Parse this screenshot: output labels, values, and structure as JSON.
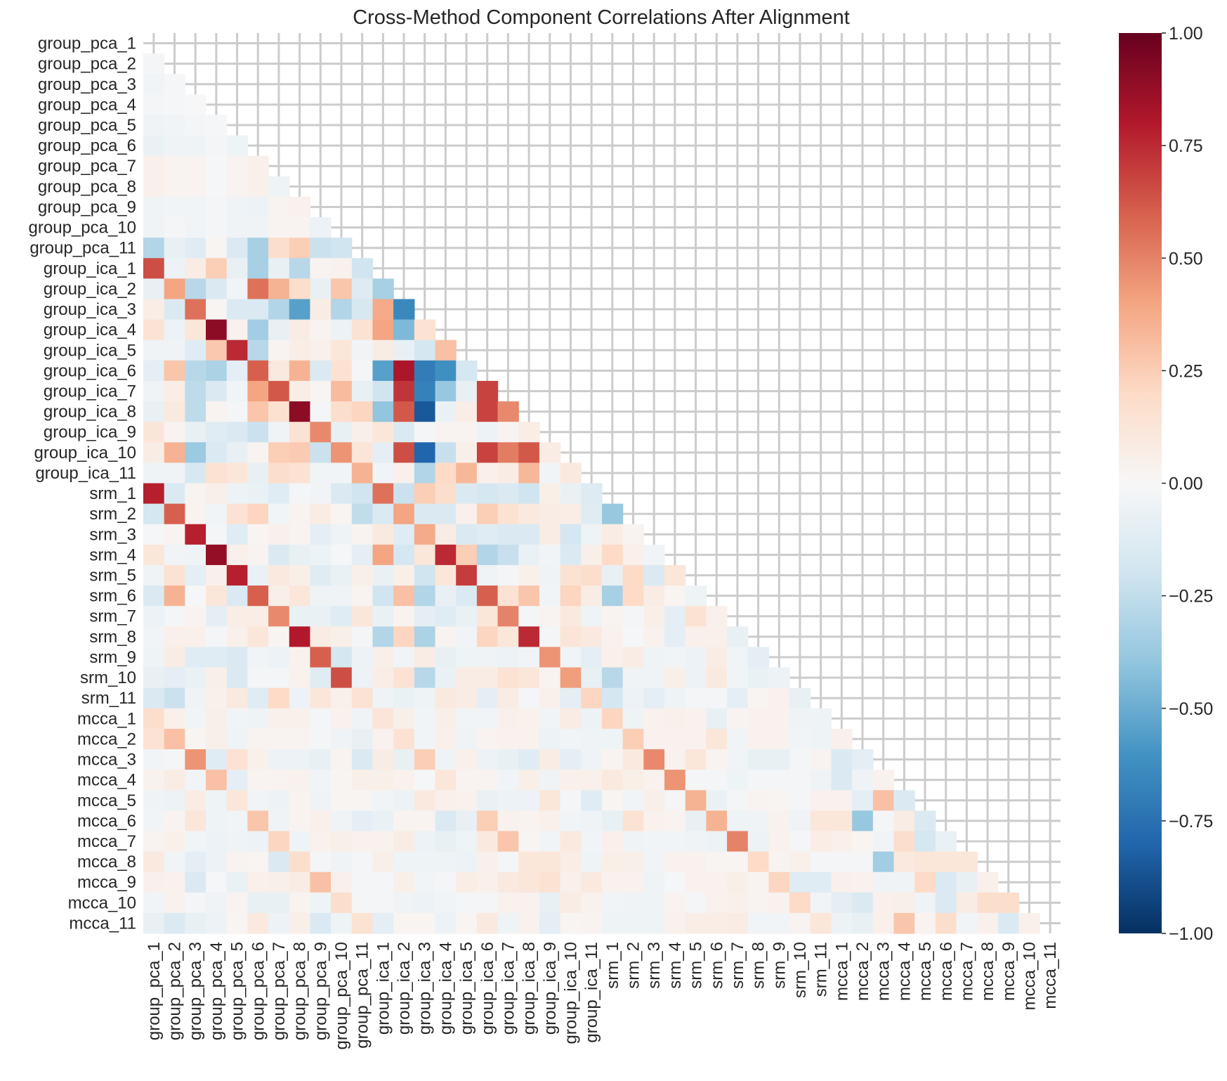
{
  "chart_data": {
    "type": "heatmap",
    "title": "Cross-Method Component Correlations After Alignment",
    "xlabel": "",
    "ylabel": "",
    "mask": "upper-triangle-including-diagonal",
    "colormap": "RdBu_r",
    "vmin": -1,
    "vmax": 1,
    "grid": true,
    "colorbar_ticks": [
      "1.00",
      "0.75",
      "0.50",
      "0.25",
      "0.00",
      "−0.25",
      "−0.50",
      "−0.75",
      "−1.00"
    ],
    "colorbar_tick_values": [
      1,
      0.75,
      0.5,
      0.25,
      0,
      -0.25,
      -0.5,
      -0.75,
      -1
    ],
    "labels": [
      "group_pca_1",
      "group_pca_2",
      "group_pca_3",
      "group_pca_4",
      "group_pca_5",
      "group_pca_6",
      "group_pca_7",
      "group_pca_8",
      "group_pca_9",
      "group_pca_10",
      "group_pca_11",
      "group_ica_1",
      "group_ica_2",
      "group_ica_3",
      "group_ica_4",
      "group_ica_5",
      "group_ica_6",
      "group_ica_7",
      "group_ica_8",
      "group_ica_9",
      "group_ica_10",
      "group_ica_11",
      "srm_1",
      "srm_2",
      "srm_3",
      "srm_4",
      "srm_5",
      "srm_6",
      "srm_7",
      "srm_8",
      "srm_9",
      "srm_10",
      "srm_11",
      "mcca_1",
      "mcca_2",
      "mcca_3",
      "mcca_4",
      "mcca_5",
      "mcca_6",
      "mcca_7",
      "mcca_8",
      "mcca_9",
      "mcca_10",
      "mcca_11"
    ],
    "lower_triangle": [
      [],
      [
        -0.02
      ],
      [
        -0.03,
        -0.01
      ],
      [
        -0.02,
        -0.01,
        0.0
      ],
      [
        -0.04,
        -0.03,
        -0.02,
        -0.01
      ],
      [
        -0.07,
        -0.04,
        -0.05,
        -0.02,
        -0.05
      ],
      [
        0.05,
        0.03,
        0.03,
        -0.01,
        0.03,
        0.05
      ],
      [
        0.05,
        0.03,
        0.03,
        -0.01,
        0.03,
        0.05,
        -0.05
      ],
      [
        -0.04,
        -0.03,
        -0.03,
        -0.02,
        -0.04,
        -0.06,
        0.03,
        0.04
      ],
      [
        -0.04,
        -0.02,
        -0.03,
        -0.02,
        -0.04,
        -0.04,
        0.03,
        0.03,
        -0.06
      ],
      [
        -0.3,
        -0.08,
        -0.12,
        0.02,
        -0.15,
        -0.33,
        0.18,
        0.25,
        -0.22,
        -0.2
      ],
      [
        0.65,
        -0.06,
        0.08,
        0.25,
        -0.08,
        -0.33,
        -0.08,
        -0.28,
        0.03,
        0.04,
        -0.2
      ],
      [
        -0.08,
        0.4,
        -0.28,
        -0.15,
        -0.03,
        0.55,
        0.35,
        0.18,
        -0.08,
        0.28,
        -0.13,
        -0.33
      ],
      [
        0.07,
        -0.15,
        0.55,
        0.02,
        -0.15,
        -0.15,
        -0.3,
        -0.55,
        0.08,
        -0.3,
        -0.17,
        0.38,
        -0.65
      ],
      [
        0.15,
        -0.06,
        0.12,
        0.9,
        0.04,
        -0.35,
        -0.08,
        0.08,
        0.03,
        -0.06,
        0.15,
        0.4,
        -0.45,
        0.15
      ],
      [
        -0.04,
        -0.04,
        -0.12,
        0.27,
        0.75,
        -0.28,
        0.03,
        0.07,
        0.05,
        0.12,
        -0.03,
        0.08,
        -0.08,
        -0.18,
        0.3
      ],
      [
        -0.1,
        0.28,
        -0.28,
        -0.32,
        -0.1,
        0.6,
        0.1,
        0.35,
        -0.15,
        0.15,
        -0.02,
        -0.55,
        0.82,
        -0.7,
        -0.62,
        -0.18
      ],
      [
        -0.04,
        0.07,
        -0.26,
        -0.15,
        -0.03,
        0.4,
        0.62,
        0.07,
        0.02,
        0.32,
        -0.08,
        -0.2,
        0.72,
        -0.68,
        -0.38,
        -0.08,
        0.68
      ],
      [
        -0.08,
        0.1,
        -0.26,
        0.03,
        -0.02,
        0.28,
        0.16,
        0.9,
        -0.02,
        0.18,
        0.22,
        -0.4,
        0.62,
        -0.85,
        -0.07,
        0.07,
        0.68,
        0.48
      ],
      [
        0.13,
        0.03,
        -0.08,
        -0.12,
        -0.15,
        -0.22,
        -0.04,
        0.15,
        0.48,
        -0.08,
        0.06,
        0.12,
        -0.15,
        -0.02,
        0.03,
        0.03,
        -0.06,
        0.03,
        0.07
      ],
      [
        0.08,
        0.35,
        -0.37,
        -0.15,
        -0.08,
        0.03,
        0.25,
        0.26,
        -0.22,
        0.45,
        0.13,
        -0.1,
        0.65,
        -0.8,
        -0.23,
        0.06,
        0.68,
        0.52,
        0.62,
        0.08
      ],
      [
        -0.05,
        -0.04,
        -0.17,
        0.15,
        0.12,
        -0.08,
        0.18,
        0.15,
        -0.03,
        -0.03,
        0.35,
        -0.03,
        0.05,
        -0.3,
        0.2,
        0.33,
        0.05,
        0.08,
        0.33,
        -0.03,
        0.1
      ],
      [
        0.78,
        -0.15,
        0.03,
        0.06,
        -0.06,
        -0.07,
        -0.12,
        -0.02,
        -0.03,
        -0.15,
        -0.2,
        0.55,
        -0.22,
        0.25,
        0.18,
        -0.15,
        -0.18,
        -0.15,
        -0.2,
        0.06,
        -0.07,
        -0.13
      ],
      [
        -0.18,
        0.6,
        0.03,
        -0.03,
        0.15,
        0.22,
        -0.03,
        0.03,
        0.08,
        0.02,
        -0.25,
        -0.15,
        0.4,
        -0.15,
        -0.15,
        0.05,
        0.25,
        0.15,
        0.1,
        0.08,
        0.07,
        -0.12,
        -0.38
      ],
      [
        -0.01,
        0.03,
        0.78,
        -0.02,
        -0.12,
        0.02,
        0.05,
        0.03,
        -0.1,
        -0.05,
        0.03,
        0.1,
        -0.12,
        0.38,
        0.08,
        -0.15,
        -0.12,
        -0.15,
        -0.15,
        0.08,
        -0.18,
        -0.05,
        0.08,
        0.03
      ],
      [
        0.12,
        -0.03,
        -0.05,
        0.88,
        0.05,
        0.03,
        -0.15,
        -0.08,
        -0.06,
        -0.01,
        -0.1,
        0.4,
        -0.18,
        0.12,
        0.75,
        0.25,
        -0.3,
        -0.23,
        -0.07,
        -0.03,
        -0.15,
        0.06,
        0.2,
        0.05,
        -0.03
      ],
      [
        -0.04,
        0.15,
        -0.1,
        0.05,
        0.78,
        -0.07,
        0.1,
        0.06,
        -0.12,
        -0.07,
        0.06,
        -0.07,
        0.06,
        -0.2,
        0.12,
        0.7,
        -0.04,
        -0.02,
        0.05,
        -0.04,
        0.15,
        0.18,
        -0.08,
        0.2,
        -0.15,
        0.12
      ],
      [
        -0.15,
        0.35,
        -0.01,
        0.12,
        -0.15,
        0.6,
        0.06,
        0.12,
        -0.04,
        -0.04,
        0.03,
        -0.2,
        0.3,
        -0.3,
        -0.08,
        -0.15,
        0.6,
        0.15,
        0.28,
        -0.03,
        0.22,
        0.08,
        -0.33,
        0.2,
        0.08,
        0.02,
        -0.05
      ],
      [
        -0.06,
        -0.02,
        0.03,
        -0.1,
        0.07,
        0.07,
        0.48,
        -0.07,
        -0.07,
        -0.12,
        0.12,
        -0.07,
        0.03,
        -0.1,
        -0.12,
        -0.07,
        0.12,
        0.5,
        -0.02,
        0.03,
        0.1,
        -0.05,
        0.03,
        -0.02,
        0.06,
        -0.1,
        0.15,
        0.05
      ],
      [
        -0.03,
        0.05,
        0.05,
        -0.02,
        0.05,
        0.12,
        0.02,
        0.8,
        0.08,
        0.06,
        -0.02,
        -0.3,
        0.22,
        -0.32,
        0.03,
        -0.03,
        0.22,
        0.12,
        0.75,
        -0.02,
        0.13,
        0.1,
        0.04,
        -0.01,
        0.04,
        -0.1,
        0.05,
        0.05,
        -0.08
      ],
      [
        -0.05,
        0.08,
        -0.12,
        -0.12,
        -0.15,
        -0.03,
        -0.06,
        0.04,
        0.6,
        -0.18,
        -0.06,
        0.06,
        -0.03,
        0.08,
        -0.08,
        -0.05,
        -0.04,
        -0.06,
        -0.03,
        0.45,
        -0.03,
        -0.1,
        0.05,
        0.08,
        -0.05,
        -0.03,
        -0.06,
        0.08,
        -0.03,
        -0.1
      ],
      [
        -0.08,
        -0.1,
        -0.07,
        0.06,
        -0.15,
        -0.02,
        -0.02,
        0.04,
        -0.12,
        0.65,
        -0.06,
        0.07,
        0.15,
        -0.28,
        -0.07,
        0.08,
        0.08,
        0.15,
        0.12,
        0.03,
        0.42,
        -0.08,
        -0.28,
        -0.04,
        -0.04,
        0.06,
        -0.06,
        0.1,
        -0.03,
        -0.07,
        -0.06
      ],
      [
        -0.15,
        -0.22,
        -0.04,
        0.05,
        0.1,
        -0.12,
        0.2,
        -0.06,
        0.12,
        0.05,
        0.15,
        -0.04,
        -0.07,
        -0.05,
        0.1,
        0.08,
        -0.1,
        0.08,
        -0.02,
        0.05,
        -0.1,
        0.22,
        -0.18,
        -0.06,
        -0.1,
        -0.05,
        -0.02,
        -0.02,
        -0.1,
        0.02,
        0.04,
        -0.08
      ],
      [
        0.18,
        0.05,
        -0.03,
        0.06,
        -0.03,
        -0.05,
        0.05,
        0.05,
        -0.02,
        0.04,
        -0.04,
        0.13,
        0.06,
        -0.03,
        0.06,
        -0.03,
        -0.03,
        0.05,
        0.04,
        -0.03,
        0.08,
        -0.06,
        0.22,
        -0.05,
        0.04,
        0.05,
        0.04,
        -0.08,
        0.03,
        0.04,
        0.04,
        -0.04,
        -0.05
      ],
      [
        0.15,
        0.3,
        0.02,
        0.06,
        -0.05,
        0.03,
        0.03,
        0.03,
        -0.02,
        -0.04,
        -0.08,
        0.04,
        0.15,
        -0.03,
        0.05,
        -0.04,
        0.03,
        0.04,
        0.04,
        -0.06,
        -0.03,
        -0.04,
        -0.05,
        0.25,
        0.04,
        0.04,
        0.04,
        0.12,
        -0.03,
        0.04,
        0.04,
        -0.03,
        -0.05,
        0.05
      ],
      [
        -0.03,
        -0.02,
        0.45,
        -0.12,
        0.15,
        0.05,
        -0.06,
        -0.06,
        -0.08,
        0.03,
        -0.15,
        0.08,
        -0.08,
        0.25,
        -0.04,
        0.05,
        -0.06,
        -0.08,
        -0.12,
        0.08,
        -0.1,
        -0.04,
        0.03,
        0.1,
        0.48,
        0.04,
        0.12,
        0.03,
        -0.03,
        -0.08,
        -0.08,
        -0.02,
        0.03,
        -0.15,
        -0.1
      ],
      [
        0.04,
        0.08,
        -0.03,
        0.3,
        -0.1,
        0.03,
        0.03,
        0.04,
        -0.03,
        0.02,
        0.06,
        0.06,
        0.04,
        -0.01,
        0.12,
        0.03,
        0.03,
        -0.03,
        0.06,
        -0.04,
        0.05,
        0.05,
        0.1,
        0.06,
        0.04,
        0.45,
        -0.02,
        -0.02,
        -0.05,
        -0.02,
        -0.02,
        -0.02,
        -0.04,
        -0.15,
        -0.04,
        0.04
      ],
      [
        -0.04,
        -0.06,
        0.08,
        -0.05,
        0.12,
        -0.03,
        -0.06,
        0.03,
        -0.04,
        0.02,
        0.02,
        -0.03,
        -0.06,
        0.1,
        0.05,
        0.04,
        -0.07,
        -0.06,
        -0.06,
        0.12,
        -0.02,
        -0.12,
        0.02,
        -0.03,
        0.06,
        -0.02,
        0.35,
        -0.07,
        -0.02,
        0.03,
        0.02,
        -0.02,
        0.04,
        0.04,
        -0.1,
        0.3,
        -0.15
      ],
      [
        -0.03,
        0.03,
        0.12,
        -0.05,
        -0.03,
        0.28,
        -0.04,
        0.03,
        0.05,
        -0.04,
        -0.1,
        -0.07,
        0.03,
        0.03,
        -0.15,
        -0.08,
        0.25,
        0.04,
        0.03,
        0.05,
        -0.03,
        -0.04,
        -0.08,
        0.15,
        0.04,
        0.03,
        -0.08,
        0.35,
        -0.05,
        -0.04,
        0.04,
        -0.04,
        0.12,
        0.12,
        -0.38,
        -0.02,
        0.08,
        -0.15
      ],
      [
        0.03,
        0.05,
        -0.03,
        -0.06,
        -0.04,
        -0.06,
        0.22,
        -0.05,
        0.04,
        0.06,
        0.04,
        0.04,
        0.08,
        -0.06,
        -0.08,
        -0.05,
        0.1,
        0.28,
        0.02,
        -0.03,
        0.1,
        -0.03,
        0.05,
        -0.04,
        -0.03,
        -0.03,
        -0.04,
        -0.06,
        0.5,
        -0.06,
        0.04,
        -0.02,
        0.07,
        0.05,
        0.02,
        -0.03,
        0.18,
        -0.18,
        -0.07
      ],
      [
        0.1,
        -0.03,
        -0.1,
        -0.06,
        0.03,
        0.02,
        -0.15,
        0.18,
        -0.02,
        -0.04,
        -0.02,
        0.06,
        -0.05,
        -0.05,
        -0.05,
        -0.06,
        0.05,
        -0.02,
        0.12,
        0.12,
        0.07,
        -0.05,
        0.06,
        0.06,
        -0.03,
        0.04,
        0.04,
        0.02,
        0.02,
        0.2,
        0.03,
        0.05,
        -0.02,
        -0.02,
        -0.02,
        -0.35,
        0.1,
        0.12,
        0.12,
        0.12
      ],
      [
        0.05,
        0.04,
        -0.15,
        -0.01,
        -0.07,
        0.05,
        0.06,
        0.08,
        0.3,
        0.05,
        -0.02,
        -0.02,
        0.06,
        -0.03,
        -0.02,
        0.07,
        0.05,
        0.1,
        0.12,
        0.15,
        0.05,
        0.1,
        0.04,
        0.04,
        -0.04,
        -0.01,
        0.04,
        0.04,
        0.06,
        0.03,
        0.22,
        -0.12,
        -0.12,
        0.05,
        0.04,
        -0.04,
        -0.04,
        0.2,
        -0.15,
        -0.08,
        0.05
      ],
      [
        -0.03,
        0.04,
        -0.02,
        -0.04,
        0.03,
        -0.08,
        -0.08,
        0.03,
        -0.05,
        0.18,
        -0.02,
        -0.02,
        -0.04,
        -0.06,
        -0.03,
        -0.02,
        -0.02,
        0.04,
        0.04,
        -0.08,
        0.08,
        0.04,
        -0.03,
        -0.04,
        -0.05,
        0.03,
        -0.02,
        0.04,
        0.05,
        0.03,
        0.04,
        0.2,
        -0.03,
        -0.1,
        -0.15,
        0.05,
        0.06,
        -0.04,
        -0.15,
        0.08,
        0.18,
        0.18
      ],
      [
        -0.08,
        -0.15,
        -0.08,
        -0.06,
        0.02,
        0.1,
        -0.06,
        0.06,
        -0.15,
        -0.05,
        0.15,
        -0.1,
        0.02,
        0.02,
        -0.06,
        0.02,
        0.1,
        -0.05,
        0.04,
        -0.1,
        0.02,
        0.03,
        -0.05,
        -0.05,
        -0.05,
        0.04,
        0.07,
        0.07,
        0.08,
        -0.03,
        -0.03,
        0.03,
        0.12,
        -0.06,
        -0.08,
        0.05,
        0.28,
        0.03,
        0.18,
        -0.03,
        0.05,
        -0.15,
        0.05
      ]
    ]
  }
}
